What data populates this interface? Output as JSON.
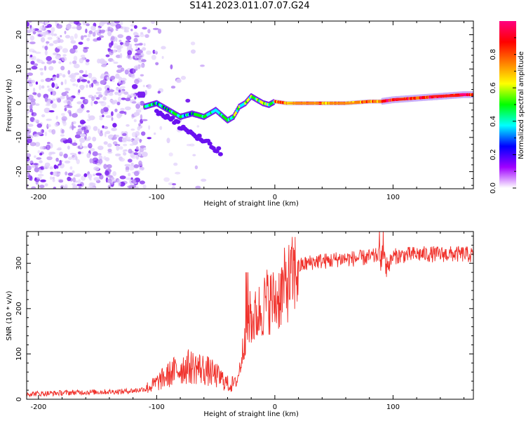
{
  "title": "S141.2023.011.07.07.G24",
  "chart_data": [
    {
      "type": "heatmap",
      "xlabel": "Height of straight line (km)",
      "ylabel": "Frequency (Hz)",
      "xlim": [
        -210,
        168
      ],
      "ylim": [
        -25,
        24
      ],
      "xticks": [
        -200,
        -100,
        0,
        100
      ],
      "yticks": [
        20,
        10,
        0,
        -10,
        -20
      ],
      "colorbar": {
        "label": "Normalized spectral amplitude",
        "range": [
          0.0,
          1.0
        ],
        "ticks": [
          0.0,
          0.2,
          0.4,
          0.6,
          0.8
        ],
        "colors": [
          "#ffffff",
          "#a000ff",
          "#0000ff",
          "#00ffff",
          "#00ff00",
          "#ffff00",
          "#ff7f00",
          "#ff0000",
          "#ff0080"
        ]
      },
      "ridge": {
        "x": [
          -110,
          -100,
          -90,
          -80,
          -70,
          -60,
          -50,
          -40,
          -35,
          -30,
          -25,
          -20,
          -15,
          -10,
          -5,
          0,
          10,
          20,
          40,
          60,
          80,
          90,
          100,
          120,
          140,
          160,
          168
        ],
        "y": [
          -1,
          0,
          -2,
          -4,
          -3,
          -4,
          -2,
          -5,
          -4,
          -1,
          0,
          2,
          1,
          0,
          -0.5,
          0.5,
          0,
          0,
          0,
          0,
          0.5,
          0.5,
          1,
          1.5,
          2,
          2.5,
          2.5
        ]
      },
      "grid": false
    },
    {
      "type": "line",
      "xlabel": "Height of straight line (km)",
      "ylabel": "SNR (10 * v/v)",
      "xlim": [
        -210,
        168
      ],
      "ylim": [
        0,
        370
      ],
      "xticks": [
        -200,
        -100,
        0,
        100
      ],
      "yticks": [
        0,
        100,
        200,
        300
      ],
      "series": [
        {
          "color": "#f0302a",
          "x": [
            -210,
            -190,
            -170,
            -150,
            -130,
            -115,
            -105,
            -95,
            -85,
            -75,
            -65,
            -55,
            -45,
            -38,
            -32,
            -28,
            -25,
            -22,
            -18,
            -14,
            -10,
            -6,
            -2,
            2,
            6,
            10,
            14,
            18,
            22,
            28,
            35,
            45,
            55,
            65,
            75,
            85,
            90,
            93,
            96,
            100,
            110,
            120,
            130,
            140,
            150,
            160,
            168
          ],
          "y": [
            12,
            13,
            15,
            16,
            17,
            20,
            28,
            45,
            62,
            72,
            70,
            60,
            45,
            30,
            40,
            90,
            150,
            180,
            175,
            190,
            205,
            220,
            215,
            220,
            240,
            255,
            265,
            285,
            295,
            300,
            305,
            305,
            310,
            310,
            312,
            315,
            325,
            315,
            295,
            315,
            318,
            320,
            320,
            320,
            320,
            320,
            318
          ]
        }
      ],
      "grid": false
    }
  ]
}
